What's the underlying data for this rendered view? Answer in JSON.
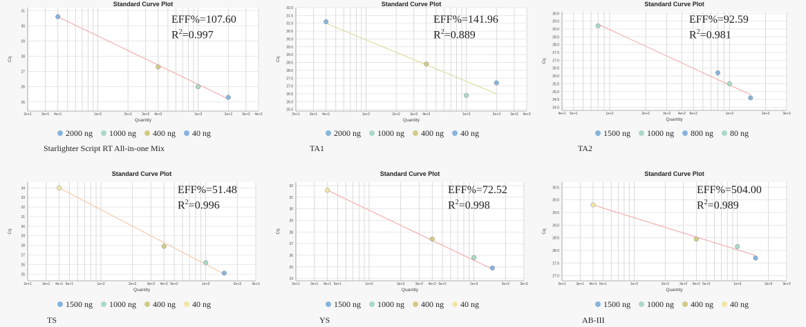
{
  "colors": {
    "blue": "#86b4dd",
    "green": "#a9d9c7",
    "olive": "#d4cb85",
    "yellow": "#f1e6a6",
    "line_red": "#f2a9aa",
    "line_peach": "#f4c7a6",
    "line_yellow": "#ddd99a",
    "grid": "#d0d0d0"
  },
  "chart_data": [
    {
      "type": "scatter",
      "title": "Standard Curve Plot",
      "xlabel": "Quantity",
      "ylabel": "Cq",
      "x_scale": "log",
      "xlim": [
        20,
        4000
      ],
      "x_ticks": [
        {
          "v": 20,
          "l": "2e+1"
        },
        {
          "v": 30,
          "l": "3e+1"
        },
        {
          "v": 40,
          "l": "4e+1"
        },
        {
          "v": 100,
          "l": "1e+2"
        },
        {
          "v": 200,
          "l": "2e+2"
        },
        {
          "v": 300,
          "l": "3e+2"
        },
        {
          "v": 400,
          "l": "4e+2"
        },
        {
          "v": 1000,
          "l": "1e+3"
        },
        {
          "v": 2000,
          "l": "2e+3"
        },
        {
          "v": 3000,
          "l": "3e+3"
        },
        {
          "v": 4000,
          "l": "4e+3"
        }
      ],
      "y_ticks": [
        25,
        26,
        27,
        28,
        29,
        30,
        31
      ],
      "ylim": [
        24.4,
        31.2
      ],
      "points": [
        {
          "x": 40,
          "y": 30.6,
          "color": "blue"
        },
        {
          "x": 400,
          "y": 27.3,
          "color": "olive"
        },
        {
          "x": 1000,
          "y": 26.0,
          "color": "green"
        },
        {
          "x": 2000,
          "y": 25.3,
          "color": "blue"
        }
      ],
      "fit": {
        "x1": 40,
        "y1": 30.6,
        "x2": 2000,
        "y2": 25.2,
        "color": "line_red"
      },
      "eff": "EFF%=107.60",
      "r2_label": "R",
      "r2_value": "=0.997",
      "legend": [
        {
          "label": "2000 ng",
          "color": "blue"
        },
        {
          "label": "1000 ng",
          "color": "green"
        },
        {
          "label": "400 ng",
          "color": "olive"
        },
        {
          "label": "40 ng",
          "color": "blue"
        }
      ],
      "caption": "Starlighter Script RT All-in-one Mix"
    },
    {
      "type": "scatter",
      "title": "Standard Curve Plot",
      "xlabel": "Quantity",
      "ylabel": "Cq",
      "x_scale": "log",
      "xlim": [
        20,
        4000
      ],
      "x_ticks": [
        {
          "v": 20,
          "l": "2e+1"
        },
        {
          "v": 30,
          "l": "3e+1"
        },
        {
          "v": 40,
          "l": "4e+1"
        },
        {
          "v": 100,
          "l": "1e+2"
        },
        {
          "v": 200,
          "l": "2e+2"
        },
        {
          "v": 300,
          "l": "3e+2"
        },
        {
          "v": 400,
          "l": "4e+2"
        },
        {
          "v": 1000,
          "l": "1e+3"
        },
        {
          "v": 2000,
          "l": "2e+3"
        },
        {
          "v": 3000,
          "l": "3e+3"
        },
        {
          "v": 4000,
          "l": "4e+3"
        }
      ],
      "y_ticks": [
        25.5,
        26.0,
        26.5,
        27.0,
        27.5,
        28.0,
        28.5,
        29.0,
        29.5,
        30.0,
        30.5,
        31.0,
        31.5,
        32.0
      ],
      "ylim": [
        25.4,
        32.0
      ],
      "points": [
        {
          "x": 40,
          "y": 31.1,
          "color": "blue"
        },
        {
          "x": 400,
          "y": 28.4,
          "color": "olive"
        },
        {
          "x": 1000,
          "y": 26.4,
          "color": "green"
        },
        {
          "x": 2000,
          "y": 27.2,
          "color": "blue"
        }
      ],
      "fit": {
        "x1": 40,
        "y1": 31.0,
        "x2": 2000,
        "y2": 26.5,
        "color": "line_yellow"
      },
      "eff": "EFF%=141.96",
      "r2_label": "R",
      "r2_value": "=0.889",
      "legend": [
        {
          "label": "2000 ng",
          "color": "blue"
        },
        {
          "label": "1000 ng",
          "color": "green"
        },
        {
          "label": "400 ng",
          "color": "olive"
        },
        {
          "label": "40 ng",
          "color": "blue"
        }
      ],
      "caption": "TA1"
    },
    {
      "type": "scatter",
      "title": "Standard Curve Plot",
      "xlabel": "Quantity",
      "ylabel": "Cq",
      "x_scale": "log",
      "xlim": [
        40,
        3000
      ],
      "x_ticks": [
        {
          "v": 40,
          "l": "4e+1"
        },
        {
          "v": 50,
          "l": "5e+1"
        },
        {
          "v": 100,
          "l": "1e+2"
        },
        {
          "v": 200,
          "l": "2e+2"
        },
        {
          "v": 300,
          "l": "3e+2"
        },
        {
          "v": 400,
          "l": "4e+2"
        },
        {
          "v": 500,
          "l": "5e+2"
        },
        {
          "v": 1000,
          "l": "1e+3"
        },
        {
          "v": 2000,
          "l": "2e+3"
        },
        {
          "v": 3000,
          "l": "3e+3"
        }
      ],
      "y_ticks": [
        24.0,
        24.5,
        25.0,
        25.5,
        26.0,
        26.5,
        27.0,
        27.5,
        28.0,
        28.5,
        29.0,
        29.5,
        30.0
      ],
      "ylim": [
        23.8,
        30.1
      ],
      "points": [
        {
          "x": 80,
          "y": 29.2,
          "color": "green"
        },
        {
          "x": 800,
          "y": 26.2,
          "color": "blue"
        },
        {
          "x": 1000,
          "y": 25.5,
          "color": "green"
        },
        {
          "x": 1500,
          "y": 24.6,
          "color": "blue"
        }
      ],
      "fit": {
        "x1": 80,
        "y1": 29.3,
        "x2": 1500,
        "y2": 24.8,
        "color": "line_red"
      },
      "eff": "EFF%=92.59",
      "r2_label": "R",
      "r2_value": "=0.981",
      "legend": [
        {
          "label": "1500 ng",
          "color": "blue"
        },
        {
          "label": "1000 ng",
          "color": "green"
        },
        {
          "label": "800 ng",
          "color": "blue"
        },
        {
          "label": "80 ng",
          "color": "green"
        }
      ],
      "caption": "TA2"
    },
    {
      "type": "scatter",
      "title": "Standard Curve Plot",
      "xlabel": "Quantity",
      "ylabel": "Cq",
      "x_scale": "log",
      "xlim": [
        20,
        3000
      ],
      "x_ticks": [
        {
          "v": 20,
          "l": "2e+1"
        },
        {
          "v": 30,
          "l": "3e+1"
        },
        {
          "v": 40,
          "l": "4e+1"
        },
        {
          "v": 50,
          "l": "5e+1"
        },
        {
          "v": 100,
          "l": "1e+2"
        },
        {
          "v": 200,
          "l": "2e+2"
        },
        {
          "v": 300,
          "l": "3e+2"
        },
        {
          "v": 400,
          "l": "4e+2"
        },
        {
          "v": 500,
          "l": "5e+2"
        },
        {
          "v": 1000,
          "l": "1e+3"
        },
        {
          "v": 2000,
          "l": "2e+3"
        },
        {
          "v": 3000,
          "l": "3e+3"
        }
      ],
      "y_ticks": [
        25,
        26,
        27,
        28,
        29,
        30,
        31,
        32,
        33,
        34
      ],
      "ylim": [
        24.3,
        34.6
      ],
      "points": [
        {
          "x": 40,
          "y": 34.0,
          "color": "yellow"
        },
        {
          "x": 400,
          "y": 27.9,
          "color": "olive"
        },
        {
          "x": 1000,
          "y": 26.2,
          "color": "green"
        },
        {
          "x": 1500,
          "y": 25.1,
          "color": "blue"
        }
      ],
      "fit": {
        "x1": 40,
        "y1": 34.0,
        "x2": 1500,
        "y2": 25.0,
        "color": "line_peach"
      },
      "eff": "EFF%=51.48",
      "r2_label": "R",
      "r2_value": "=0.996",
      "legend": [
        {
          "label": "1500 ng",
          "color": "blue"
        },
        {
          "label": "1000 ng",
          "color": "green"
        },
        {
          "label": "400 ng",
          "color": "olive"
        },
        {
          "label": "40 ng",
          "color": "yellow"
        }
      ],
      "caption": "TS"
    },
    {
      "type": "scatter",
      "title": "Standard Curve Plot",
      "xlabel": "Quantity",
      "ylabel": "Cq",
      "x_scale": "log",
      "xlim": [
        20,
        3000
      ],
      "x_ticks": [
        {
          "v": 20,
          "l": "2e+1"
        },
        {
          "v": 30,
          "l": "3e+1"
        },
        {
          "v": 40,
          "l": "4e+1"
        },
        {
          "v": 50,
          "l": "5e+1"
        },
        {
          "v": 100,
          "l": "1e+2"
        },
        {
          "v": 200,
          "l": "2e+2"
        },
        {
          "v": 300,
          "l": "3e+2"
        },
        {
          "v": 400,
          "l": "4e+2"
        },
        {
          "v": 500,
          "l": "5e+2"
        },
        {
          "v": 1000,
          "l": "1e+3"
        },
        {
          "v": 2000,
          "l": "2e+3"
        },
        {
          "v": 3000,
          "l": "3e+3"
        }
      ],
      "y_ticks": [
        24,
        25,
        26,
        27,
        28,
        29,
        30,
        31,
        32
      ],
      "ylim": [
        23.8,
        32.3
      ],
      "points": [
        {
          "x": 40,
          "y": 31.6,
          "color": "yellow"
        },
        {
          "x": 400,
          "y": 27.4,
          "color": "olive"
        },
        {
          "x": 1000,
          "y": 25.8,
          "color": "green"
        },
        {
          "x": 1500,
          "y": 24.9,
          "color": "blue"
        }
      ],
      "fit": {
        "x1": 40,
        "y1": 31.6,
        "x2": 1500,
        "y2": 24.8,
        "color": "line_red"
      },
      "eff": "EFF%=72.52",
      "r2_label": "R",
      "r2_value": "=0.998",
      "legend": [
        {
          "label": "1500 ng",
          "color": "blue"
        },
        {
          "label": "1000 ng",
          "color": "green"
        },
        {
          "label": "400 ng",
          "color": "olive"
        },
        {
          "label": "40 ng",
          "color": "yellow"
        }
      ],
      "caption": "YS"
    },
    {
      "type": "scatter",
      "title": "Standard Curve Plot",
      "xlabel": "Quantity",
      "ylabel": "Cq",
      "x_scale": "log",
      "xlim": [
        20,
        3000
      ],
      "x_ticks": [
        {
          "v": 20,
          "l": "2e+1"
        },
        {
          "v": 30,
          "l": "3e+1"
        },
        {
          "v": 40,
          "l": "4e+1"
        },
        {
          "v": 50,
          "l": "5e+1"
        },
        {
          "v": 100,
          "l": "1e+2"
        },
        {
          "v": 200,
          "l": "2e+2"
        },
        {
          "v": 300,
          "l": "3e+2"
        },
        {
          "v": 400,
          "l": "4e+2"
        },
        {
          "v": 500,
          "l": "5e+2"
        },
        {
          "v": 1000,
          "l": "1e+3"
        },
        {
          "v": 2000,
          "l": "2e+3"
        },
        {
          "v": 3000,
          "l": "3e+3"
        }
      ],
      "y_ticks": [
        27.0,
        27.5,
        28.0,
        28.5,
        29.0,
        29.5,
        30.0,
        30.5
      ],
      "ylim": [
        26.8,
        30.7
      ],
      "points": [
        {
          "x": 40,
          "y": 29.8,
          "color": "yellow"
        },
        {
          "x": 400,
          "y": 28.45,
          "color": "olive"
        },
        {
          "x": 1000,
          "y": 28.15,
          "color": "green"
        },
        {
          "x": 1500,
          "y": 27.7,
          "color": "blue"
        }
      ],
      "fit": {
        "x1": 40,
        "y1": 29.8,
        "x2": 1500,
        "y2": 27.8,
        "color": "line_red"
      },
      "eff": "EFF%=504.00",
      "r2_label": "R",
      "r2_value": "=0.989",
      "legend": [
        {
          "label": "1500 ng",
          "color": "blue"
        },
        {
          "label": "1000 ng",
          "color": "green"
        },
        {
          "label": "400 ng",
          "color": "olive"
        },
        {
          "label": "40 ng",
          "color": "yellow"
        }
      ],
      "caption": "AB-III"
    }
  ]
}
